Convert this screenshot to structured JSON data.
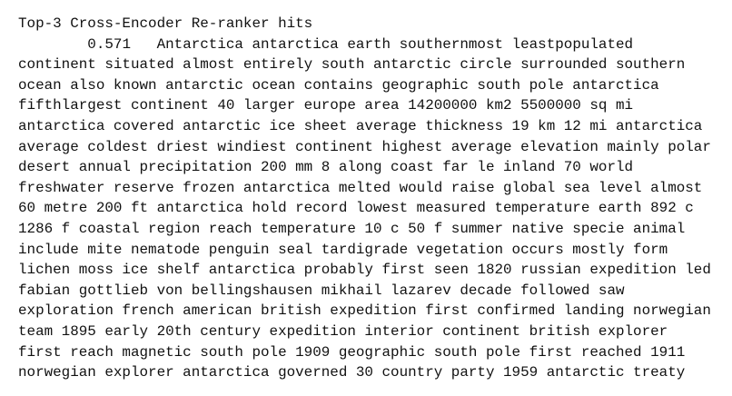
{
  "title": "Top-3 Cross-Encoder Re-ranker hits",
  "hits": [
    {
      "score": 0.571,
      "text_lines": [
        "Antarctica antarctica earth southernmost leastpopulated",
        "continent situated almost entirely south antarctic circle surrounded southern",
        "ocean also known antarctic ocean contains geographic south pole antarctica",
        "fifthlargest continent 40 larger europe area 14200000 km2 5500000 sq mi",
        "antarctica covered antarctic ice sheet average thickness 19 km 12 mi antarctica",
        "average coldest driest windiest continent highest average elevation mainly polar",
        "desert annual precipitation 200 mm 8 along coast far le inland 70 world",
        "freshwater reserve frozen antarctica melted would raise global sea level almost",
        "60 metre 200 ft antarctica hold record lowest measured temperature earth 892 c",
        "1286 f coastal region reach temperature 10 c 50 f summer native specie animal",
        "include mite nematode penguin seal tardigrade vegetation occurs mostly form",
        "lichen moss ice shelf antarctica probably first seen 1820 russian expedition led",
        "fabian gottlieb von bellingshausen mikhail lazarev decade followed saw",
        "exploration french american british expedition first confirmed landing norwegian",
        "team 1895 early 20th century expedition interior continent british explorer",
        "first reach magnetic south pole 1909 geographic south pole first reached 1911",
        "norwegian explorer antarctica governed 30 country party 1959 antarctic treaty"
      ]
    }
  ]
}
